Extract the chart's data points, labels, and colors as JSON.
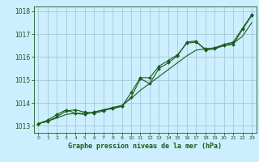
{
  "title": "Graphe pression niveau de la mer (hPa)",
  "background_color": "#cceeff",
  "grid_color": "#aaccdd",
  "line_color": "#1a5c1a",
  "hours": [
    0,
    1,
    2,
    3,
    4,
    5,
    6,
    7,
    8,
    9,
    10,
    11,
    12,
    13,
    14,
    15,
    16,
    17,
    18,
    19,
    20,
    21,
    22,
    23
  ],
  "line1_smooth": [
    1013.1,
    1013.2,
    1013.35,
    1013.5,
    1013.55,
    1013.55,
    1013.6,
    1013.7,
    1013.8,
    1013.9,
    1014.2,
    1014.55,
    1014.85,
    1015.15,
    1015.45,
    1015.75,
    1016.05,
    1016.3,
    1016.35,
    1016.4,
    1016.5,
    1016.6,
    1016.9,
    1017.5
  ],
  "line2_markers": [
    1013.1,
    1013.2,
    1013.4,
    1013.65,
    1013.7,
    1013.6,
    1013.55,
    1013.65,
    1013.8,
    1013.85,
    1014.25,
    1015.05,
    1014.85,
    1015.5,
    1015.75,
    1016.05,
    1016.65,
    1016.7,
    1016.3,
    1016.35,
    1016.5,
    1016.55,
    1017.2,
    1017.8
  ],
  "line3_markers": [
    1013.1,
    1013.25,
    1013.5,
    1013.7,
    1013.55,
    1013.5,
    1013.6,
    1013.7,
    1013.75,
    1013.85,
    1014.45,
    1015.1,
    1015.1,
    1015.6,
    1015.85,
    1016.1,
    1016.6,
    1016.65,
    1016.35,
    1016.4,
    1016.55,
    1016.65,
    1017.25,
    1017.85
  ],
  "ylim_min": 1012.7,
  "ylim_max": 1018.2,
  "yticks": [
    1013,
    1014,
    1015,
    1016,
    1017,
    1018
  ],
  "xticks": [
    0,
    1,
    2,
    3,
    4,
    5,
    6,
    7,
    8,
    9,
    10,
    11,
    12,
    13,
    14,
    15,
    16,
    17,
    18,
    19,
    20,
    21,
    22,
    23
  ]
}
